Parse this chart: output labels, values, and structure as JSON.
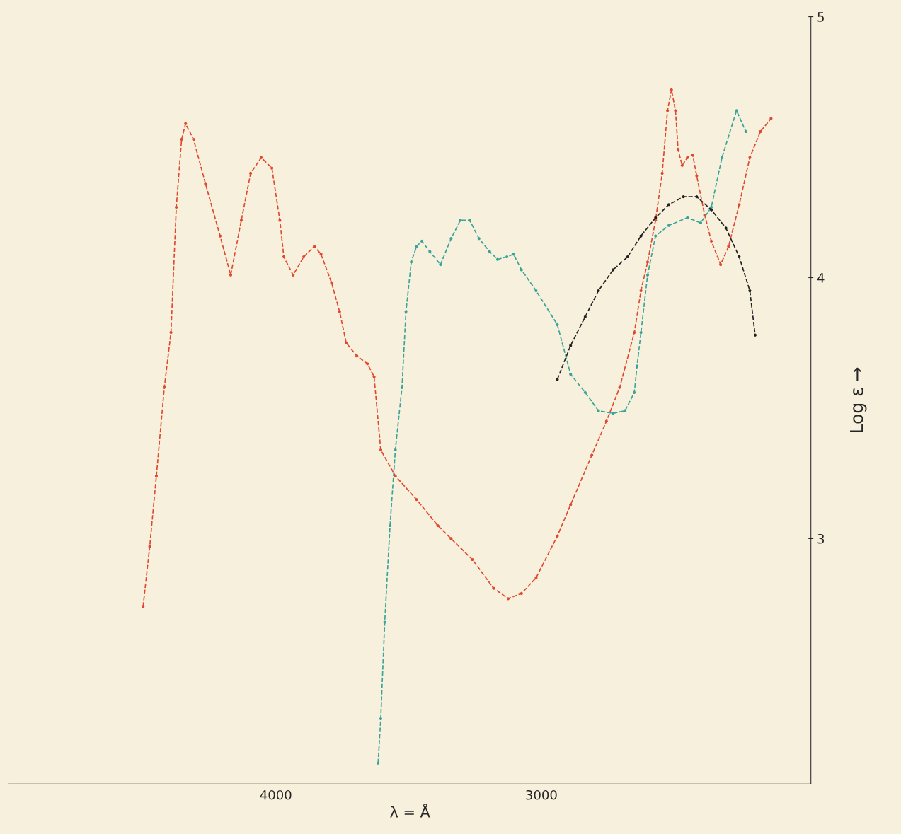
{
  "chart_data": {
    "type": "line",
    "xlabel": "λ = Å",
    "ylabel": "Log ε →",
    "xlim": [
      5005,
      1985
    ],
    "ylim": [
      2.06,
      5.0
    ],
    "xticks": [
      4000,
      3000
    ],
    "yticks": [
      3,
      4,
      5
    ],
    "grid": false,
    "legend": false,
    "marker": "circle",
    "line_style": "dashed",
    "series": [
      {
        "color": "#e0482f",
        "x": [
          4500,
          4475,
          4450,
          4420,
          4395,
          4375,
          4355,
          4340,
          4310,
          4265,
          4210,
          4170,
          4130,
          4095,
          4055,
          4015,
          3985,
          3970,
          3935,
          3895,
          3855,
          3830,
          3790,
          3760,
          3735,
          3695,
          3655,
          3630,
          3605,
          3550,
          3470,
          3390,
          3340,
          3260,
          3180,
          3125,
          3075,
          3020,
          2940,
          2890,
          2810,
          2755,
          2705,
          2650,
          2625,
          2600,
          2570,
          2545,
          2525,
          2510,
          2495,
          2485,
          2470,
          2450,
          2430,
          2415,
          2385,
          2360,
          2325,
          2295,
          2255,
          2215,
          2175,
          2135
        ],
        "values": [
          2.74,
          2.97,
          3.24,
          3.58,
          3.79,
          4.27,
          4.53,
          4.59,
          4.53,
          4.36,
          4.16,
          4.01,
          4.22,
          4.4,
          4.46,
          4.42,
          4.22,
          4.08,
          4.01,
          4.08,
          4.12,
          4.09,
          3.98,
          3.87,
          3.75,
          3.7,
          3.67,
          3.62,
          3.34,
          3.24,
          3.15,
          3.05,
          3.0,
          2.92,
          2.81,
          2.77,
          2.79,
          2.85,
          3.01,
          3.13,
          3.32,
          3.45,
          3.58,
          3.79,
          3.95,
          4.06,
          4.22,
          4.4,
          4.64,
          4.72,
          4.64,
          4.49,
          4.43,
          4.46,
          4.47,
          4.39,
          4.24,
          4.14,
          4.05,
          4.12,
          4.28,
          4.46,
          4.56,
          4.61
        ]
      },
      {
        "color": "#3aa39a",
        "x": [
          3615,
          3605,
          3590,
          3570,
          3550,
          3525,
          3510,
          3490,
          3470,
          3450,
          3420,
          3380,
          3340,
          3305,
          3270,
          3235,
          3195,
          3165,
          3130,
          3105,
          3075,
          3020,
          2940,
          2890,
          2835,
          2785,
          2730,
          2685,
          2650,
          2640,
          2625,
          2600,
          2570,
          2520,
          2450,
          2400,
          2360,
          2320,
          2265,
          2230
        ],
        "values": [
          2.14,
          2.31,
          2.68,
          3.05,
          3.34,
          3.58,
          3.87,
          4.06,
          4.12,
          4.14,
          4.1,
          4.05,
          4.15,
          4.22,
          4.22,
          4.15,
          4.1,
          4.07,
          4.08,
          4.09,
          4.03,
          3.95,
          3.82,
          3.63,
          3.56,
          3.49,
          3.48,
          3.49,
          3.56,
          3.66,
          3.79,
          4.01,
          4.16,
          4.2,
          4.23,
          4.21,
          4.27,
          4.46,
          4.64,
          4.56
        ]
      },
      {
        "color": "#222222",
        "x": [
          2940,
          2890,
          2835,
          2785,
          2730,
          2675,
          2625,
          2570,
          2520,
          2465,
          2415,
          2360,
          2305,
          2255,
          2215,
          2195
        ],
        "values": [
          3.61,
          3.74,
          3.85,
          3.95,
          4.03,
          4.08,
          4.16,
          4.23,
          4.28,
          4.31,
          4.31,
          4.26,
          4.19,
          4.08,
          3.95,
          3.78
        ]
      }
    ]
  }
}
